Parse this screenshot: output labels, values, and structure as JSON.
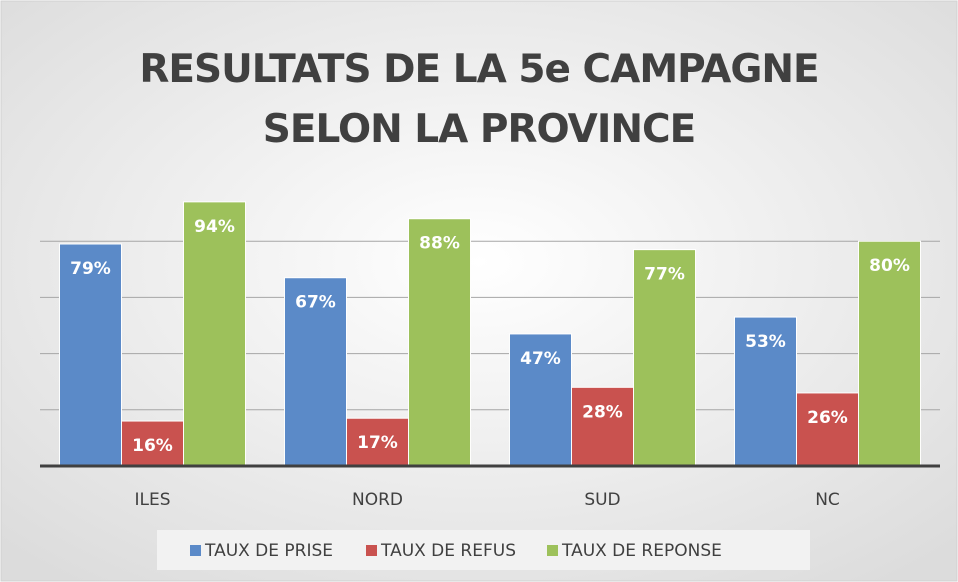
{
  "chart_data": {
    "type": "bar",
    "title": "RESULTATS DE LA 5e CAMPAGNE SELON LA PROVINCE",
    "categories": [
      "ILES",
      "NORD",
      "SUD",
      "NC"
    ],
    "series": [
      {
        "name": "TAUX DE PRISE",
        "color": "#5b8ac8",
        "values": [
          79,
          67,
          47,
          53
        ],
        "value_labels": [
          "79%",
          "67%",
          "47%",
          "53%"
        ]
      },
      {
        "name": "TAUX DE REFUS",
        "color": "#c9524f",
        "values": [
          16,
          17,
          28,
          26
        ],
        "value_labels": [
          "16%",
          "17%",
          "28%",
          "26%"
        ]
      },
      {
        "name": "TAUX DE REPONSE",
        "color": "#9dc15b",
        "values": [
          94,
          88,
          77,
          80
        ],
        "value_labels": [
          "94%",
          "88%",
          "77%",
          "80%"
        ]
      }
    ],
    "ylim": [
      0,
      100
    ],
    "yticks": [
      0,
      20,
      40,
      60,
      80
    ],
    "grid": true,
    "legend": "bottom"
  }
}
